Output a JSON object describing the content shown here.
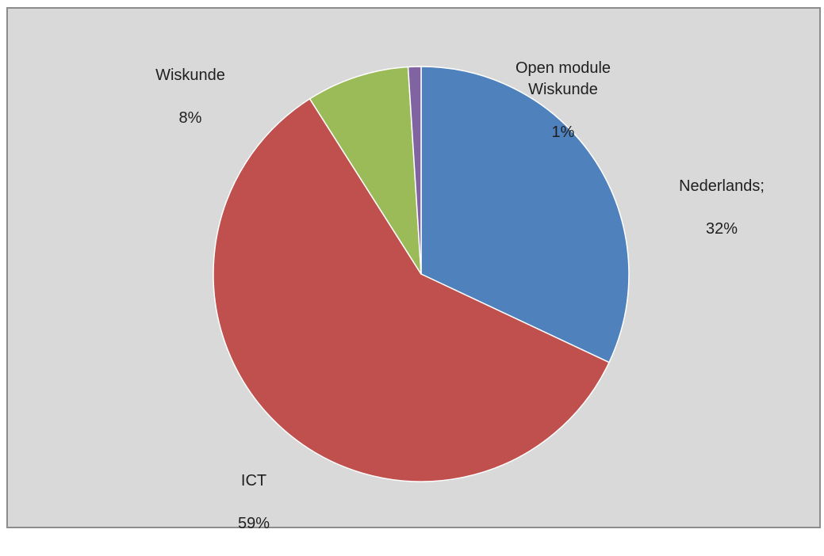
{
  "chart_data": {
    "type": "pie",
    "title": "",
    "start_angle_deg": 0,
    "direction": "clockwise",
    "slices": [
      {
        "label": "Nederlands;",
        "value": 32,
        "value_label": "32%",
        "color": "#4f81bd"
      },
      {
        "label": "ICT",
        "value": 59,
        "value_label": "59%",
        "color": "#c0504d"
      },
      {
        "label": "Wiskunde",
        "value": 8,
        "value_label": "8%",
        "color": "#9bbb59"
      },
      {
        "label": "Open module\nWiskunde",
        "value": 1,
        "value_label": "1%",
        "color": "#8064a2"
      }
    ],
    "legend": "none",
    "data_labels": "outside"
  }
}
